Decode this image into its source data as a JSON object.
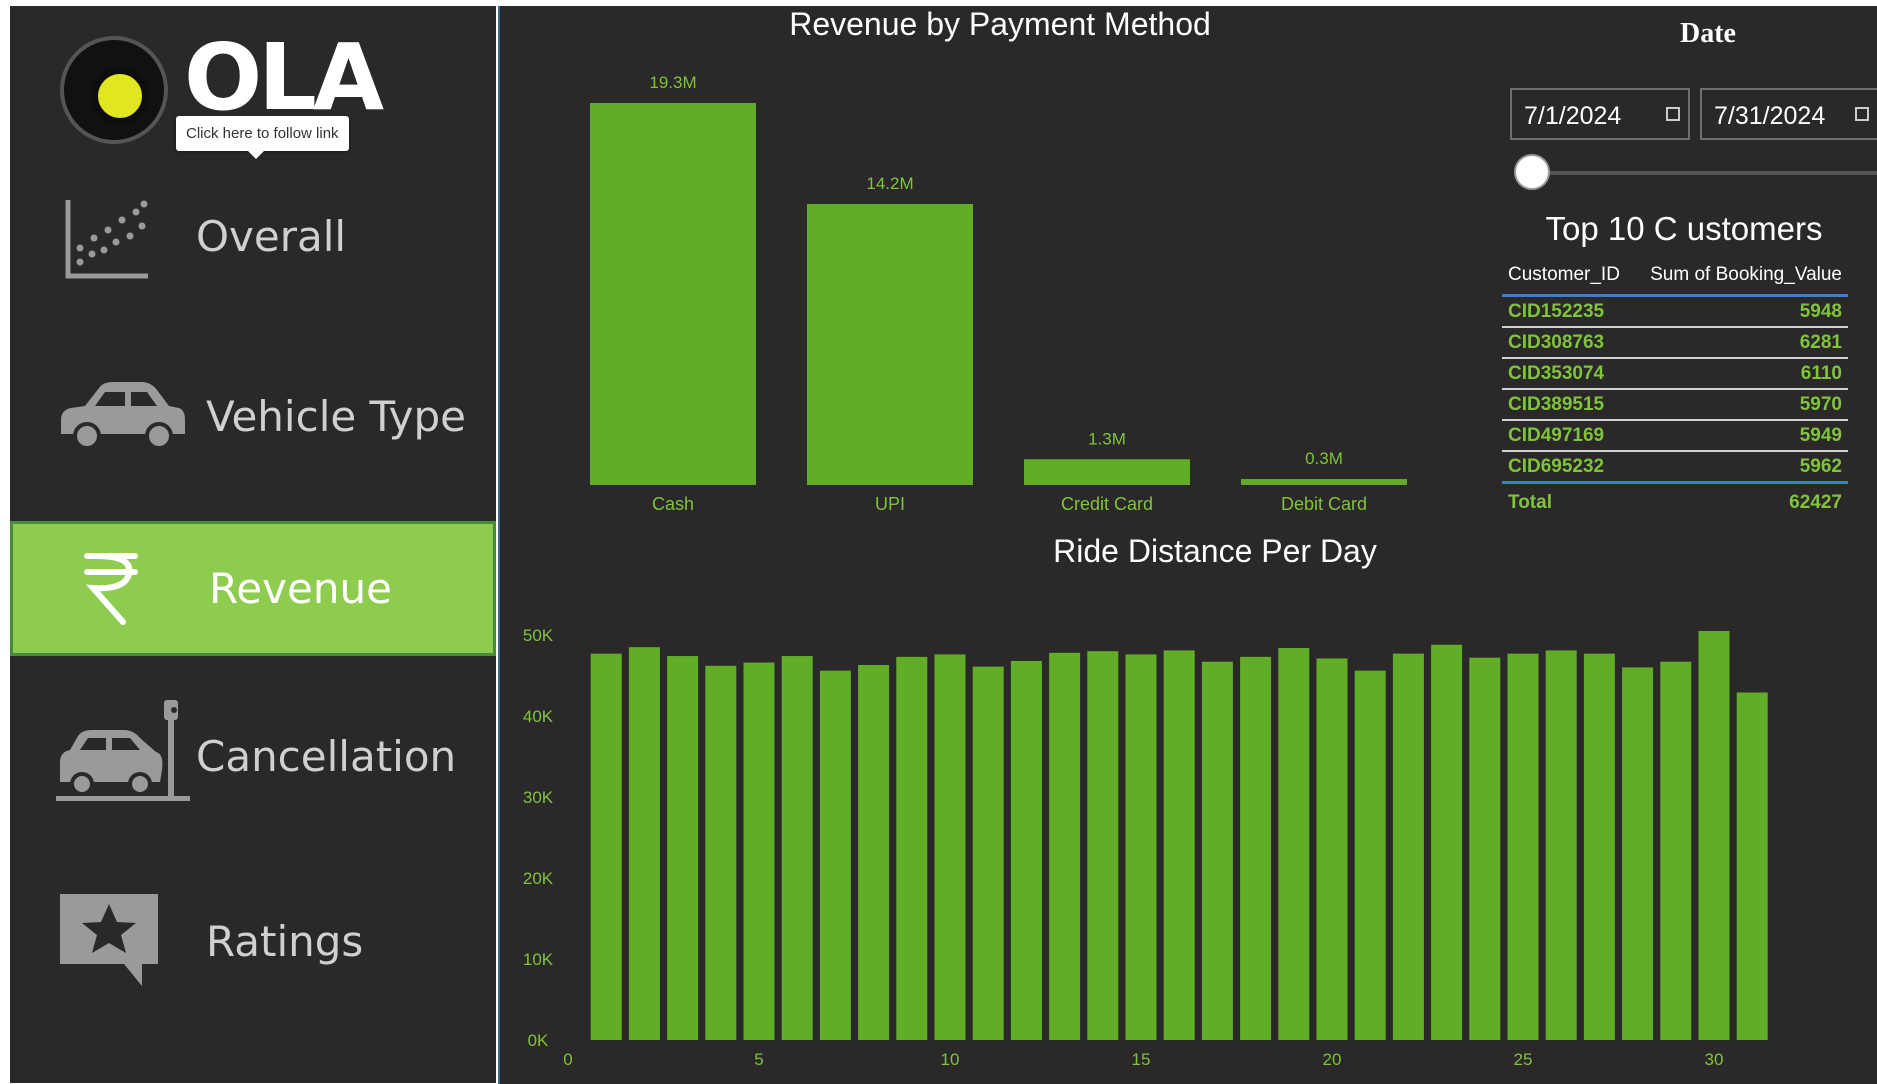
{
  "logo": {
    "text": "OLA",
    "tooltip": "Click here to follow link"
  },
  "nav": [
    {
      "label": "Overall",
      "icon": "scatter-chart-icon"
    },
    {
      "label": "Vehicle Type",
      "icon": "car-icon"
    },
    {
      "label": "Revenue",
      "icon": "rupee-icon",
      "active": true
    },
    {
      "label": "Cancellation",
      "icon": "car-crash-icon"
    },
    {
      "label": "Ratings",
      "icon": "star-bubble-icon"
    }
  ],
  "colors": {
    "accent": "#8dcc4f",
    "bar": "#62ad28",
    "background": "#2a2828",
    "table_value": "#7fc43a"
  },
  "date_filter": {
    "label": "Date",
    "start": "7/1/2024",
    "end": "7/31/2024"
  },
  "top_customers": {
    "title": "Top 10 C ustomers",
    "columns": [
      "Customer_ID",
      "Sum of Booking_Value"
    ],
    "rows": [
      [
        "CID152235",
        "5948"
      ],
      [
        "CID308763",
        "6281"
      ],
      [
        "CID353074",
        "6110"
      ],
      [
        "CID389515",
        "5970"
      ],
      [
        "CID497169",
        "5949"
      ],
      [
        "CID695232",
        "5962"
      ]
    ],
    "total_label": "Total",
    "total_value": "62427"
  },
  "chart_data": [
    {
      "type": "bar",
      "title": "Revenue by Payment Method",
      "categories": [
        "Cash",
        "UPI",
        "Credit Card",
        "Debit Card"
      ],
      "values": [
        19.3,
        14.2,
        1.3,
        0.3
      ],
      "data_labels": [
        "19.3M",
        "14.2M",
        "1.3M",
        "0.3M"
      ],
      "units": "M"
    },
    {
      "type": "bar",
      "title": "Ride Distance Per Day",
      "x": [
        1,
        2,
        3,
        4,
        5,
        6,
        7,
        8,
        9,
        10,
        11,
        12,
        13,
        14,
        15,
        16,
        17,
        18,
        19,
        20,
        21,
        22,
        23,
        24,
        25,
        26,
        27,
        28,
        29,
        30,
        31
      ],
      "values": [
        47700,
        48500,
        47400,
        46200,
        46600,
        47400,
        45600,
        46300,
        47300,
        47600,
        46100,
        46800,
        47800,
        48000,
        47600,
        48100,
        46700,
        47300,
        48400,
        47100,
        45600,
        47700,
        48800,
        47200,
        47700,
        48100,
        47700,
        46000,
        46700,
        50500,
        42900
      ],
      "ylim": [
        0,
        50000
      ],
      "yticks": [
        0,
        10000,
        20000,
        30000,
        40000,
        50000
      ],
      "ytick_labels": [
        "0K",
        "10K",
        "20K",
        "30K",
        "40K",
        "50K"
      ],
      "xticks": [
        0,
        5,
        10,
        15,
        20,
        25,
        30
      ],
      "xtick_labels": [
        "0",
        "5",
        "10",
        "15",
        "20",
        "25",
        "30"
      ],
      "grid": false
    }
  ]
}
